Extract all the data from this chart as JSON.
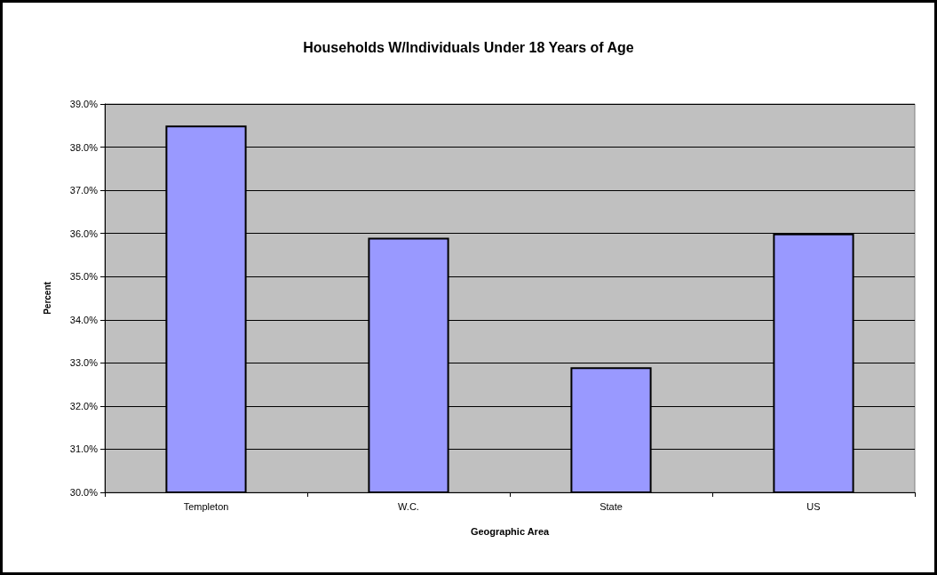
{
  "chart_data": {
    "type": "bar",
    "title": "Households W/Individuals Under 18 Years of Age",
    "xlabel": "Geographic Area",
    "ylabel": "Percent",
    "categories": [
      "Templeton",
      "W.C.",
      "State",
      "US"
    ],
    "values": [
      38.5,
      35.9,
      32.9,
      36.0
    ],
    "color": "#9999ff",
    "ylim": [
      30,
      39
    ],
    "yticks": [
      {
        "value": 30,
        "label": "30.0%"
      },
      {
        "value": 31,
        "label": "31.0%"
      },
      {
        "value": 32,
        "label": "32.0%"
      },
      {
        "value": 33,
        "label": "33.0%"
      },
      {
        "value": 34,
        "label": "34.0%"
      },
      {
        "value": 35,
        "label": "35.0%"
      },
      {
        "value": 36,
        "label": "36.0%"
      },
      {
        "value": 37,
        "label": "37.0%"
      },
      {
        "value": 38,
        "label": "38.0%"
      },
      {
        "value": 39,
        "label": "39.0%"
      }
    ],
    "grid": "y"
  }
}
